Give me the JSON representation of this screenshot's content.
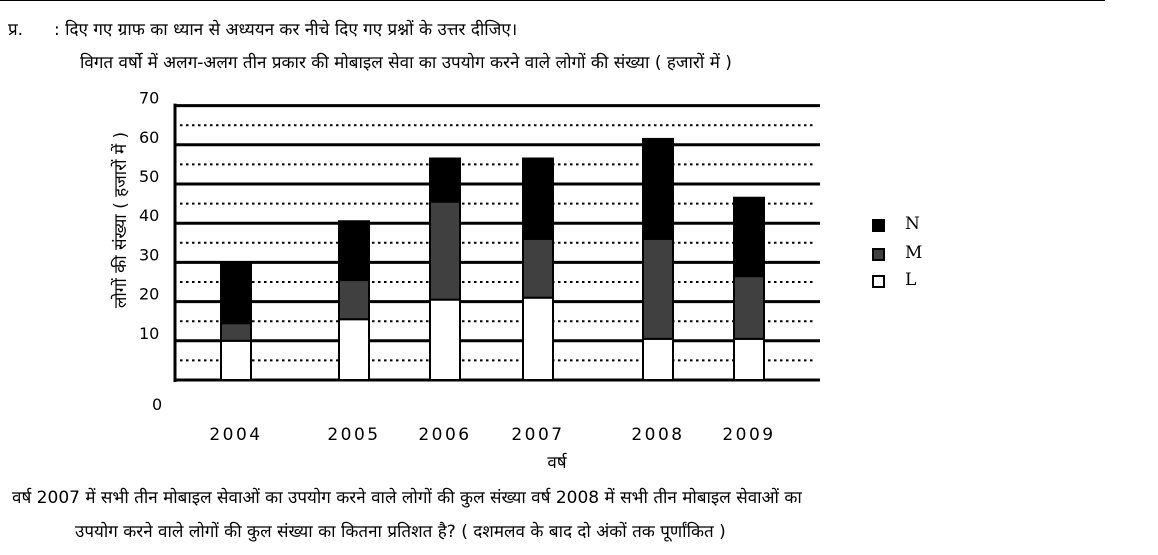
{
  "header": {
    "q_label": "प्र.",
    "instruction": ": दिए गए ग्राफ का ध्यान से अध्ययन कर नीचे दिए गए प्रश्नों के उत्तर दीजिए।",
    "chart_title": "विगत वर्षो में अलग-अलग तीन प्रकार की मोबाइल सेवा का उपयोग करने वाले लोगों की संख्या ( हजारों में )"
  },
  "question": {
    "line1": "वर्ष 2007 में सभी तीन मोबाइल सेवाओं का उपयोग करने वाले लोगों की कुल संख्या वर्ष 2008 में सभी तीन मोबाइल सेवाओं का",
    "line2": "उपयोग करने वाले लोगों की कुल संख्या का कितना प्रतिशत है? ( दशमलव के बाद दो अंकों तक पूर्णांकित )"
  },
  "chart_data": {
    "type": "bar",
    "stacked": true,
    "title": "विगत वर्षो में अलग-अलग तीन प्रकार की मोबाइल सेवा का उपयोग करने वाले लोगों की संख्या ( हजारों में )",
    "xlabel": "वर्ष",
    "ylabel": "लोगों की संख्या ( हजारों में )",
    "categories": [
      "2004",
      "2005",
      "2006",
      "2007",
      "2008",
      "2009"
    ],
    "yticks": [
      "0",
      "10",
      "20",
      "30",
      "40",
      "50",
      "60",
      "70"
    ],
    "ylim": [
      0,
      70
    ],
    "series": [
      {
        "name": "L",
        "color": "#ffffff",
        "values": [
          10,
          15.5,
          20.5,
          21,
          10.5,
          10.5
        ]
      },
      {
        "name": "M",
        "color": "#404040",
        "values": [
          4.5,
          10,
          25,
          15,
          25.5,
          16
        ]
      },
      {
        "name": "N",
        "color": "#000000",
        "values": [
          15.5,
          15,
          11,
          20.5,
          25.5,
          20
        ]
      }
    ],
    "legend_order": [
      "N",
      "M",
      "L"
    ],
    "legend_position": "right",
    "grid": true
  }
}
